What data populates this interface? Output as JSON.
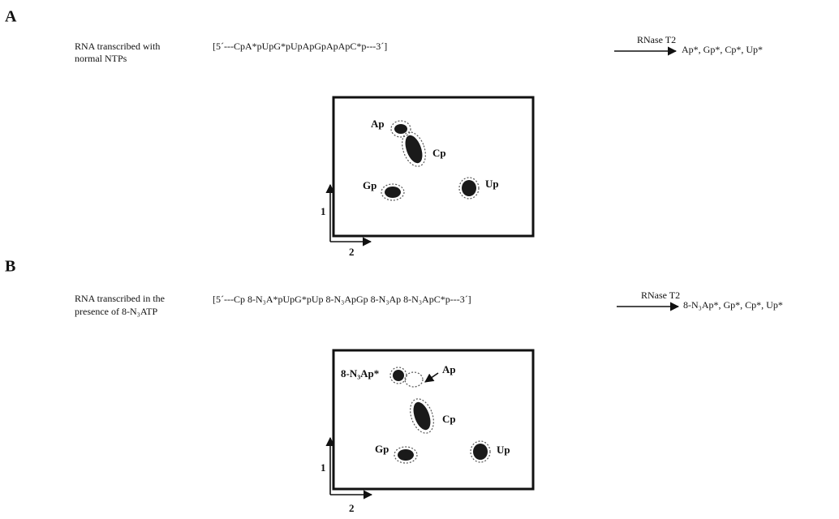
{
  "panels": [
    {
      "label": "A",
      "description": [
        "RNA transcribed with",
        "normal NTPs"
      ],
      "sequence": "[5´---CpA*pUpG*pUpApGpApApC*p---3´]",
      "enzyme": "RNase T2",
      "products": "Ap*, Gp*, Cp*, Up*",
      "spots": [
        "Ap",
        "Cp",
        "Gp",
        "Up"
      ],
      "dimensions": [
        "1",
        "2"
      ]
    },
    {
      "label": "B",
      "description": [
        "RNA transcribed in the",
        "presence of  8-N₃ATP"
      ],
      "sequence": "[5´---Cp 8-N₃A*pUpG*pUp 8-N₃ApGp 8-N₃Ap 8-N₃ApC*p---3´]",
      "enzyme": "RNase T2",
      "products": "8-N₃Ap*, Gp*, Cp*, Up*",
      "spots": [
        "8-N₃Ap*",
        "Ap",
        "Cp",
        "Gp",
        "Up"
      ],
      "dimensions": [
        "1",
        "2"
      ]
    }
  ]
}
